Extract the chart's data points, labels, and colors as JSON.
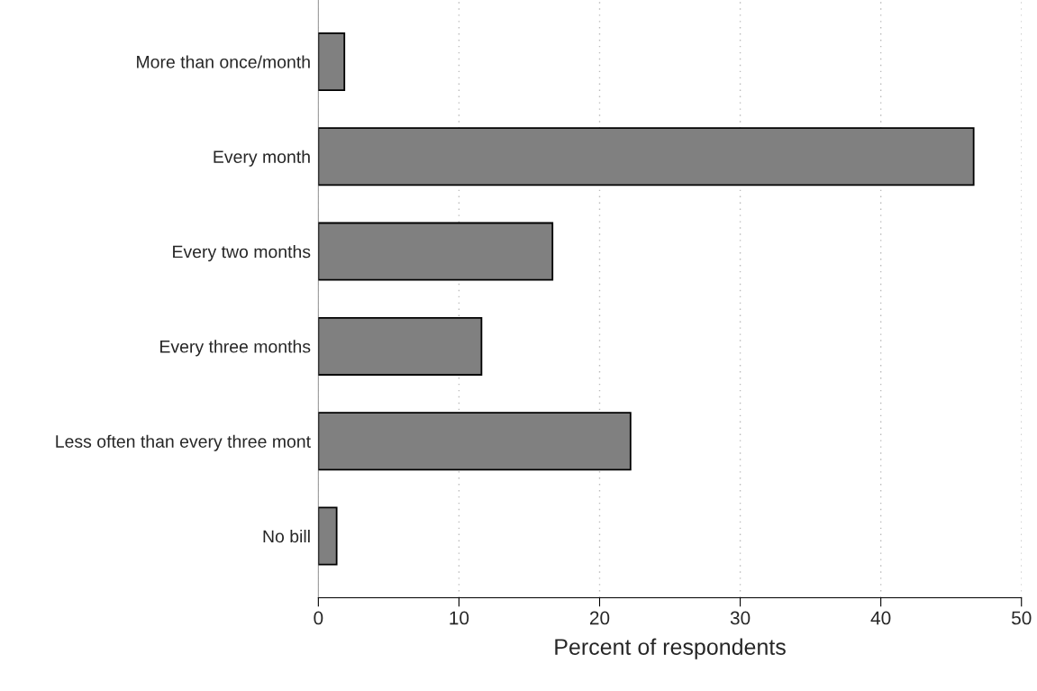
{
  "chart_data": {
    "type": "bar",
    "orientation": "horizontal",
    "categories": [
      "More than once/month",
      "Every month",
      "Every two months",
      "Every three months",
      "Less often than every three mont",
      "No bill"
    ],
    "values": [
      1.85,
      46.6,
      16.65,
      11.6,
      22.2,
      1.3
    ],
    "color": "#808080",
    "xlabel": "Percent of respondents",
    "xlim": [
      0,
      50
    ],
    "xticks": [
      0,
      10,
      20,
      30,
      40,
      50
    ],
    "grid": "x"
  }
}
